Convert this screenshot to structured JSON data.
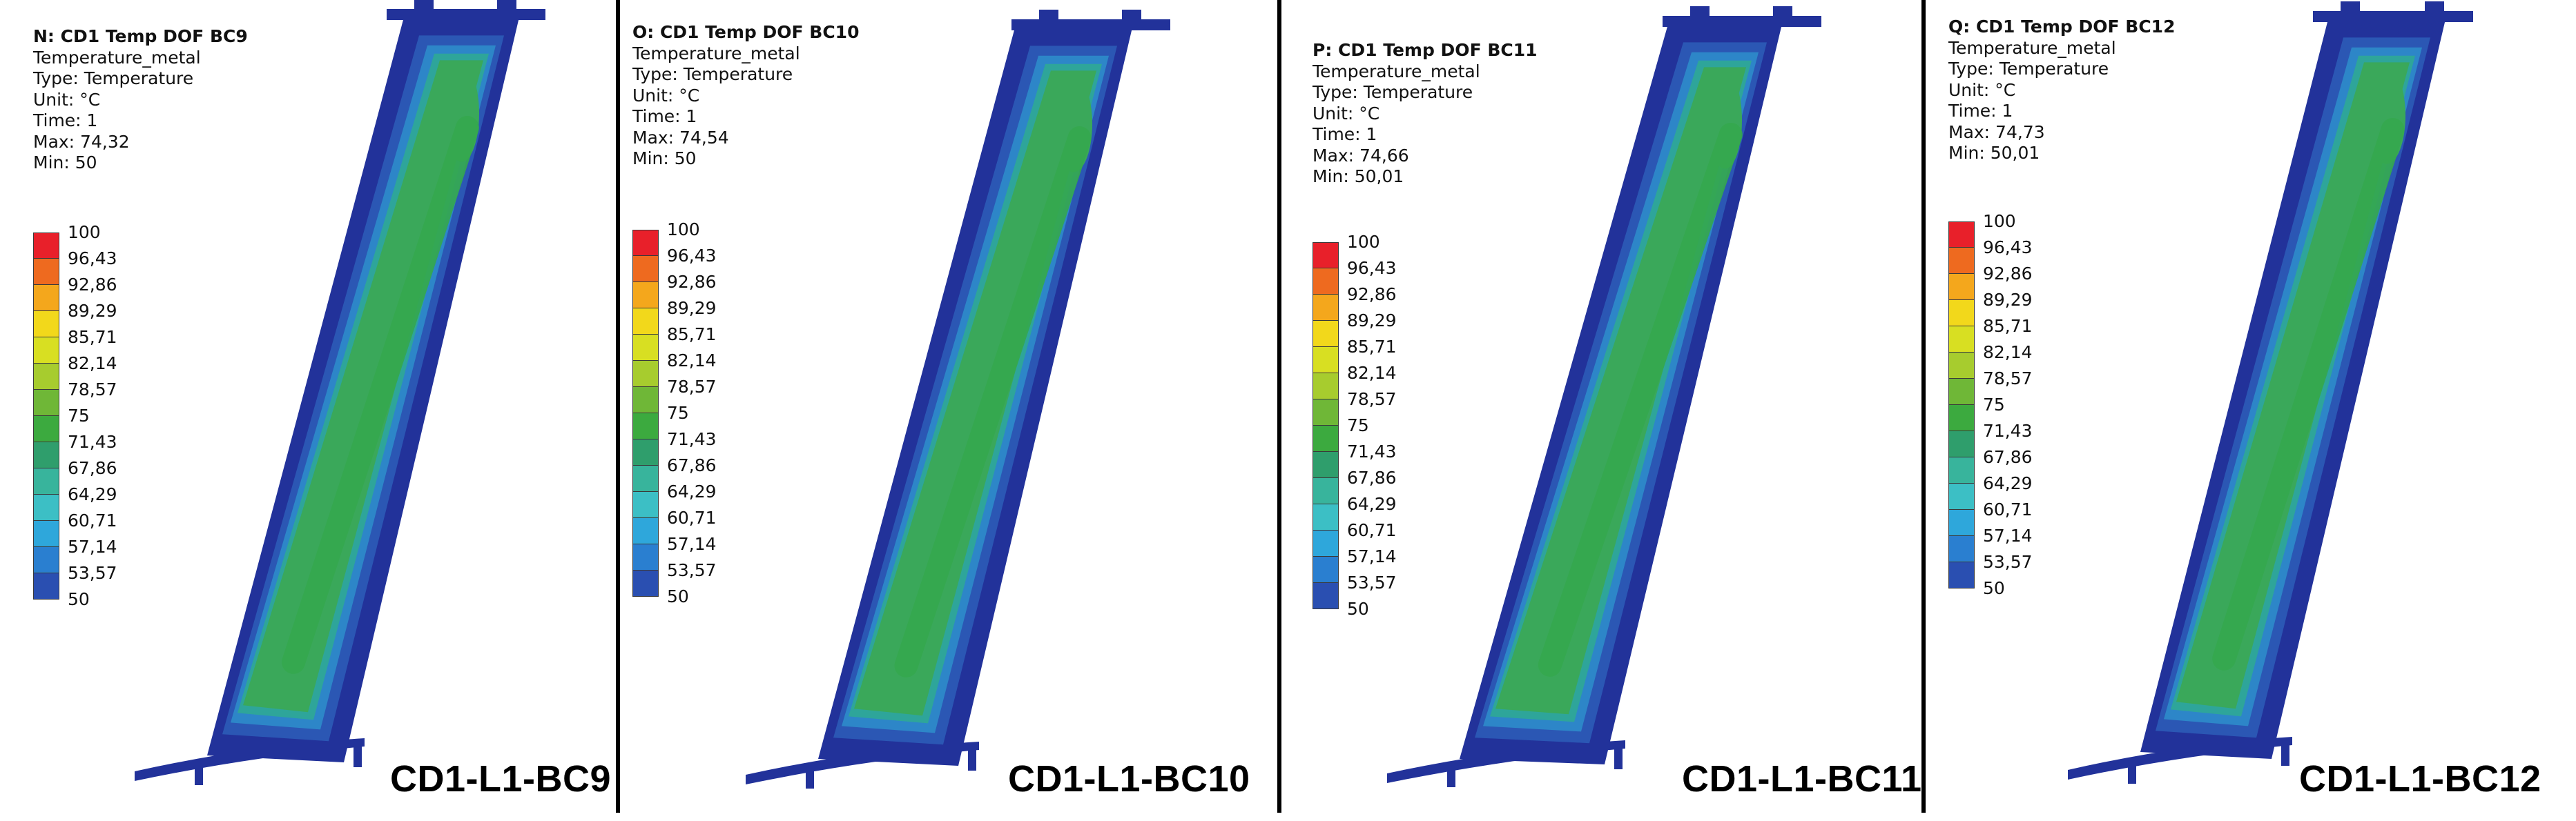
{
  "panels": [
    {
      "title": "N: CD1 Temp DOF BC9",
      "result": "Temperature_metal",
      "type": "Type: Temperature",
      "unit": "Unit: °C",
      "time": "Time: 1",
      "max": "Max: 74,32",
      "min": "Min: 50",
      "caption": "CD1-L1-BC9"
    },
    {
      "title": "O: CD1 Temp DOF BC10",
      "result": "Temperature_metal",
      "type": "Type: Temperature",
      "unit": "Unit: °C",
      "time": "Time: 1",
      "max": "Max: 74,54",
      "min": "Min: 50",
      "caption": "CD1-L1-BC10"
    },
    {
      "title": "P: CD1 Temp DOF BC11",
      "result": "Temperature_metal",
      "type": "Type: Temperature",
      "unit": "Unit: °C",
      "time": "Time: 1",
      "max": "Max: 74,66",
      "min": "Min: 50,01",
      "caption": "CD1-L1-BC11"
    },
    {
      "title": "Q: CD1 Temp DOF BC12",
      "result": "Temperature_metal",
      "type": "Type: Temperature",
      "unit": "Unit: °C",
      "time": "Time: 1",
      "max": "Max: 74,73",
      "min": "Min: 50,01",
      "caption": "CD1-L1-BC12"
    }
  ],
  "legend": {
    "labels": [
      "100",
      "96,43",
      "92,86",
      "89,29",
      "85,71",
      "82,14",
      "78,57",
      "75",
      "71,43",
      "67,86",
      "64,29",
      "60,71",
      "57,14",
      "53,57",
      "50"
    ],
    "colors": [
      "#e8202a",
      "#ee6a1f",
      "#f4a71c",
      "#f2d81b",
      "#d8df22",
      "#a7cc2e",
      "#6fb737",
      "#3caa3f",
      "#2f9e6c",
      "#38b49c",
      "#3cbfc5",
      "#2ea7db",
      "#2a7fd0",
      "#2a4fb1"
    ]
  },
  "colors": {
    "blade_outer": "#22329a",
    "blade_band1": "#2b57b4",
    "blade_band2": "#2d86c8",
    "blade_band3": "#2ea59a",
    "blade_fill": "#3aa85a",
    "blade_core": "#35a84e"
  }
}
